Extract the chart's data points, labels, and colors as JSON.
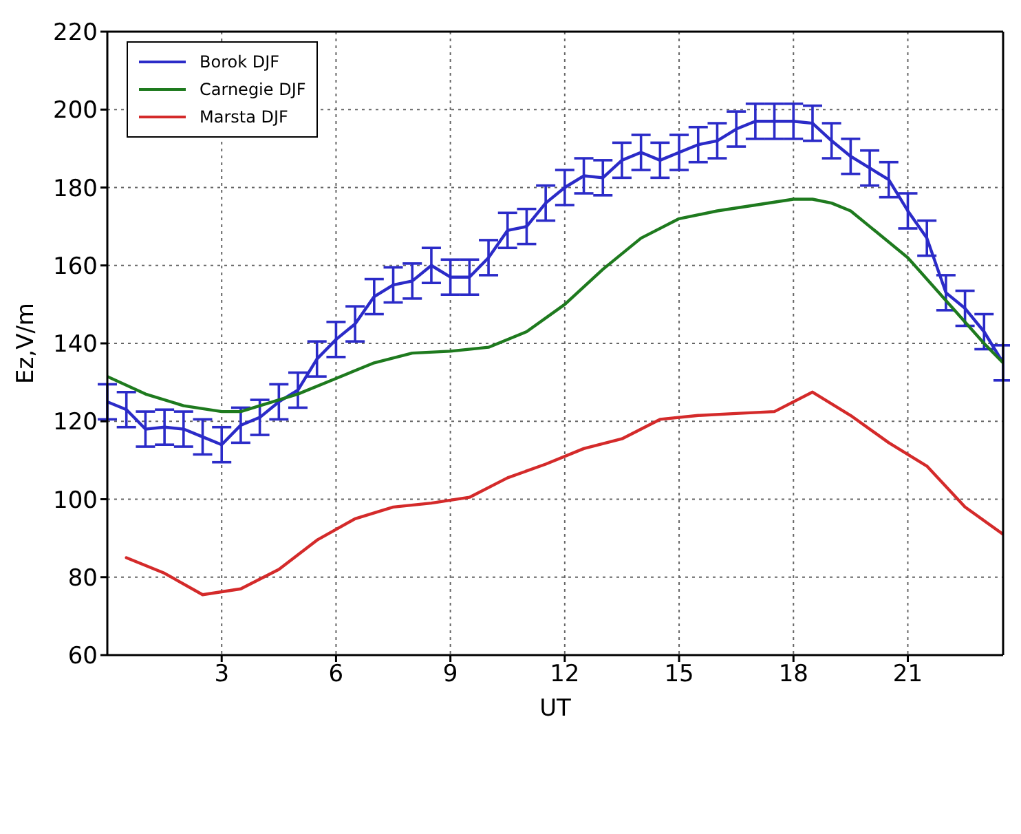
{
  "chart_data": {
    "type": "line",
    "xlabel": "UT",
    "ylabel": "Ez,V/m",
    "xlim": [
      0,
      23.5
    ],
    "xticks": [
      3,
      6,
      9,
      12,
      15,
      18,
      21
    ],
    "ylim": [
      60,
      220
    ],
    "yticks": [
      60,
      80,
      100,
      120,
      140,
      160,
      180,
      200,
      220
    ],
    "grid": true,
    "legend": "top left",
    "line_style": "solid",
    "marker": "none",
    "series": [
      {
        "name": "Borok DJF",
        "color": "#2b2bc8",
        "x": [
          0,
          0.5,
          1,
          1.5,
          2,
          2.5,
          3,
          3.5,
          4,
          4.5,
          5,
          5.5,
          6,
          6.5,
          7,
          7.5,
          8,
          8.5,
          9,
          9.5,
          10,
          10.5,
          11,
          11.5,
          12,
          12.5,
          13,
          13.5,
          14,
          14.5,
          15,
          15.5,
          16,
          16.5,
          17,
          17.5,
          18,
          18.5,
          19,
          19.5,
          20,
          20.5,
          21,
          21.5,
          22,
          22.5,
          23,
          23.5
        ],
        "values": [
          125,
          123,
          118,
          118.5,
          118,
          116,
          114,
          119,
          121,
          125,
          128,
          136,
          141,
          145,
          152,
          155,
          156,
          160,
          157,
          157,
          162,
          169,
          170,
          176,
          180,
          183,
          182.5,
          187,
          189,
          187,
          189,
          191,
          192,
          195,
          197,
          197,
          197,
          196.5,
          192,
          188,
          185,
          182,
          174,
          167,
          153,
          149,
          143,
          135
        ],
        "errors": [
          4.5,
          4.5,
          4.5,
          4.5,
          4.5,
          4.5,
          4.5,
          4.5,
          4.5,
          4.5,
          4.5,
          4.5,
          4.5,
          4.5,
          4.5,
          4.5,
          4.5,
          4.5,
          4.5,
          4.5,
          4.5,
          4.5,
          4.5,
          4.5,
          4.5,
          4.5,
          4.5,
          4.5,
          4.5,
          4.5,
          4.5,
          4.5,
          4.5,
          4.5,
          4.5,
          4.5,
          4.5,
          4.5,
          4.5,
          4.5,
          4.5,
          4.5,
          4.5,
          4.5,
          4.5,
          4.5,
          4.5,
          4.5
        ]
      },
      {
        "name": "Carnegie DJF",
        "color": "#1e7a1e",
        "x": [
          0,
          1,
          2,
          3,
          3.5,
          4,
          5,
          6,
          7,
          8,
          9,
          10,
          11,
          12,
          13,
          14,
          15,
          16,
          17,
          18,
          18.5,
          19,
          19.5,
          20,
          21,
          22,
          23,
          23.5
        ],
        "values": [
          131.5,
          127,
          124,
          122.5,
          122.5,
          124,
          127,
          131,
          135,
          137.5,
          138,
          139,
          143,
          150,
          159,
          167,
          172,
          174,
          175.5,
          177,
          177,
          176,
          174,
          170,
          162,
          151,
          140,
          135
        ]
      },
      {
        "name": "Marsta DJF",
        "color": "#d42a2a",
        "x": [
          0.5,
          1.5,
          2.5,
          3.5,
          4.5,
          5.5,
          6.5,
          7.5,
          8.5,
          9.5,
          10.5,
          11.5,
          12.5,
          13.5,
          14.5,
          15.5,
          16.5,
          17.5,
          18.5,
          19.5,
          20.5,
          21.5,
          22.5,
          23.5
        ],
        "values": [
          85,
          81,
          75.5,
          77,
          82,
          89.5,
          95,
          98,
          99,
          100.5,
          105.5,
          109,
          113,
          115.5,
          120.5,
          121.5,
          122,
          122.5,
          127.5,
          121.5,
          114.5,
          108.5,
          98,
          91
        ]
      }
    ]
  }
}
